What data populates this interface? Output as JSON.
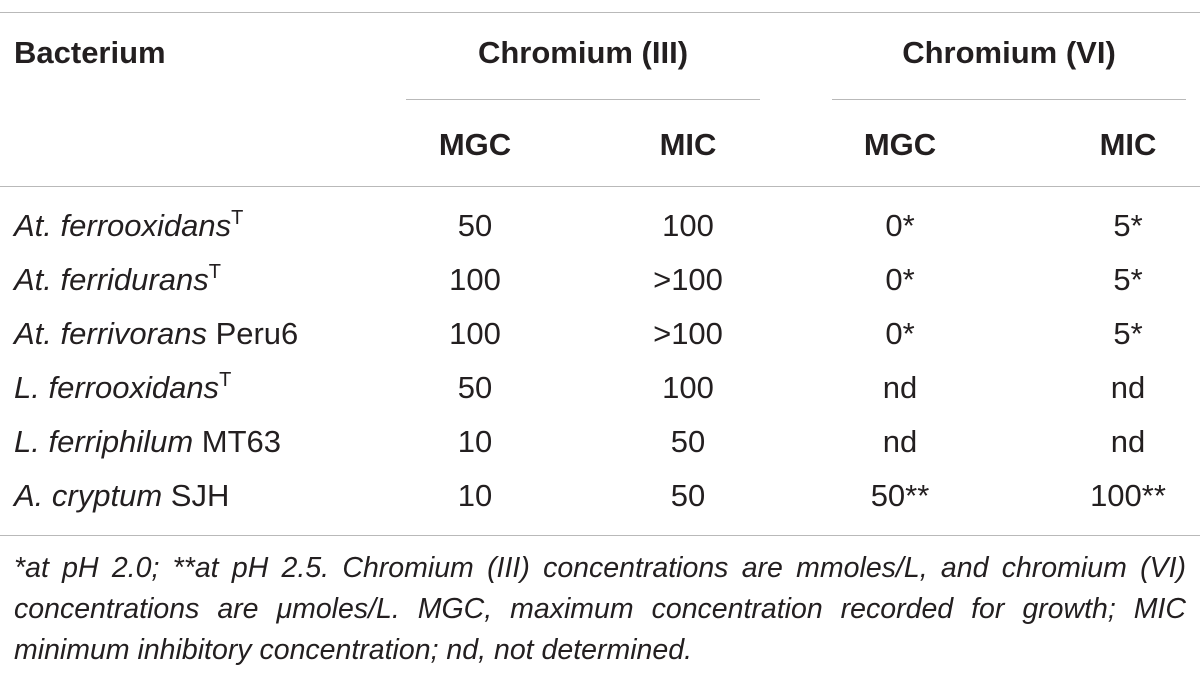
{
  "table": {
    "header": {
      "bacterium": "Bacterium",
      "group1": "Chromium (III)",
      "group2": "Chromium (VI)",
      "sub": [
        "MGC",
        "MIC",
        "MGC",
        "MIC"
      ]
    },
    "rows": [
      {
        "name_italic": "At. ferrooxidans",
        "sup": "T",
        "name_plain": "",
        "values": [
          "50",
          "100",
          "0*",
          "5*"
        ]
      },
      {
        "name_italic": "At. ferridurans",
        "sup": "T",
        "name_plain": "",
        "values": [
          "100",
          ">100",
          "0*",
          "5*"
        ]
      },
      {
        "name_italic": "At. ferrivorans",
        "sup": "",
        "name_plain": " Peru6",
        "values": [
          "100",
          ">100",
          "0*",
          "5*"
        ]
      },
      {
        "name_italic": "L. ferrooxidans",
        "sup": "T",
        "name_plain": "",
        "values": [
          "50",
          "100",
          "nd",
          "nd"
        ]
      },
      {
        "name_italic": "L. ferriphilum",
        "sup": "",
        "name_plain": " MT63",
        "values": [
          "10",
          "50",
          "nd",
          "nd"
        ]
      },
      {
        "name_italic": "A. cryptum",
        "sup": "",
        "name_plain": " SJH",
        "values": [
          "10",
          "50",
          "50**",
          "100**"
        ]
      }
    ],
    "footnote": "*at pH 2.0; **at pH 2.5. Chromium (III) concentrations are mmoles/L, and chromium (VI) concentrations are μmoles/L. MGC, maximum concentration recorded for growth; MIC minimum inhibitory concentration; nd, not determined."
  }
}
